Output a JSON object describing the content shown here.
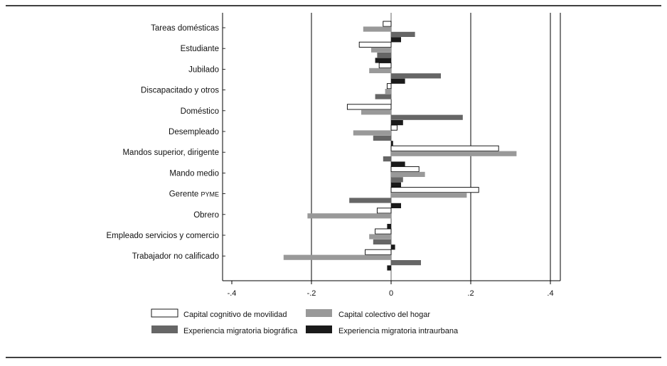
{
  "chart_data": {
    "type": "bar",
    "orientation": "horizontal",
    "categories": [
      "Tareas domésticas",
      "Estudiante",
      "Jubilado",
      "Discapacitado y otros",
      "Doméstico",
      "Desempleado",
      "Mandos superior, dirigente",
      "Mando medio",
      "Gerente PYME",
      "Obrero",
      "Empleado servicios y comercio",
      "Trabajador no calificado"
    ],
    "series": [
      {
        "name": "Capital cognitivo de movilidad",
        "color": "#ffffff",
        "values": [
          -0.02,
          -0.08,
          -0.03,
          -0.01,
          -0.11,
          0.015,
          0.27,
          0.07,
          0.22,
          -0.035,
          -0.04,
          -0.065
        ]
      },
      {
        "name": "Capital colectivo del hogar",
        "color": "#999999",
        "values": [
          -0.07,
          -0.05,
          -0.055,
          -0.015,
          -0.075,
          -0.095,
          0.315,
          0.085,
          0.19,
          -0.21,
          -0.055,
          -0.27
        ]
      },
      {
        "name": "Experiencia migratoria biográfica",
        "color": "#666666",
        "values": [
          0.06,
          -0.035,
          0.125,
          -0.04,
          0.18,
          -0.045,
          -0.02,
          0.03,
          -0.105,
          0.0,
          -0.045,
          0.075
        ]
      },
      {
        "name": "Experiencia migratoria intraurbana",
        "color": "#1a1a1a",
        "values": [
          0.025,
          -0.04,
          0.035,
          0.0,
          0.03,
          0.005,
          0.035,
          0.025,
          0.025,
          -0.01,
          0.01,
          -0.01
        ]
      }
    ],
    "xlim": [
      -0.4,
      0.4
    ],
    "xticks": [
      -0.4,
      -0.2,
      0,
      0.2,
      0.4
    ],
    "xtick_labels": [
      "-.4",
      "-.2",
      "0",
      ".2",
      ".4"
    ],
    "vertical_gridlines": [
      -0.2,
      0.2,
      0.4
    ],
    "legend_position": "bottom",
    "title": "",
    "xlabel": "",
    "ylabel": ""
  }
}
